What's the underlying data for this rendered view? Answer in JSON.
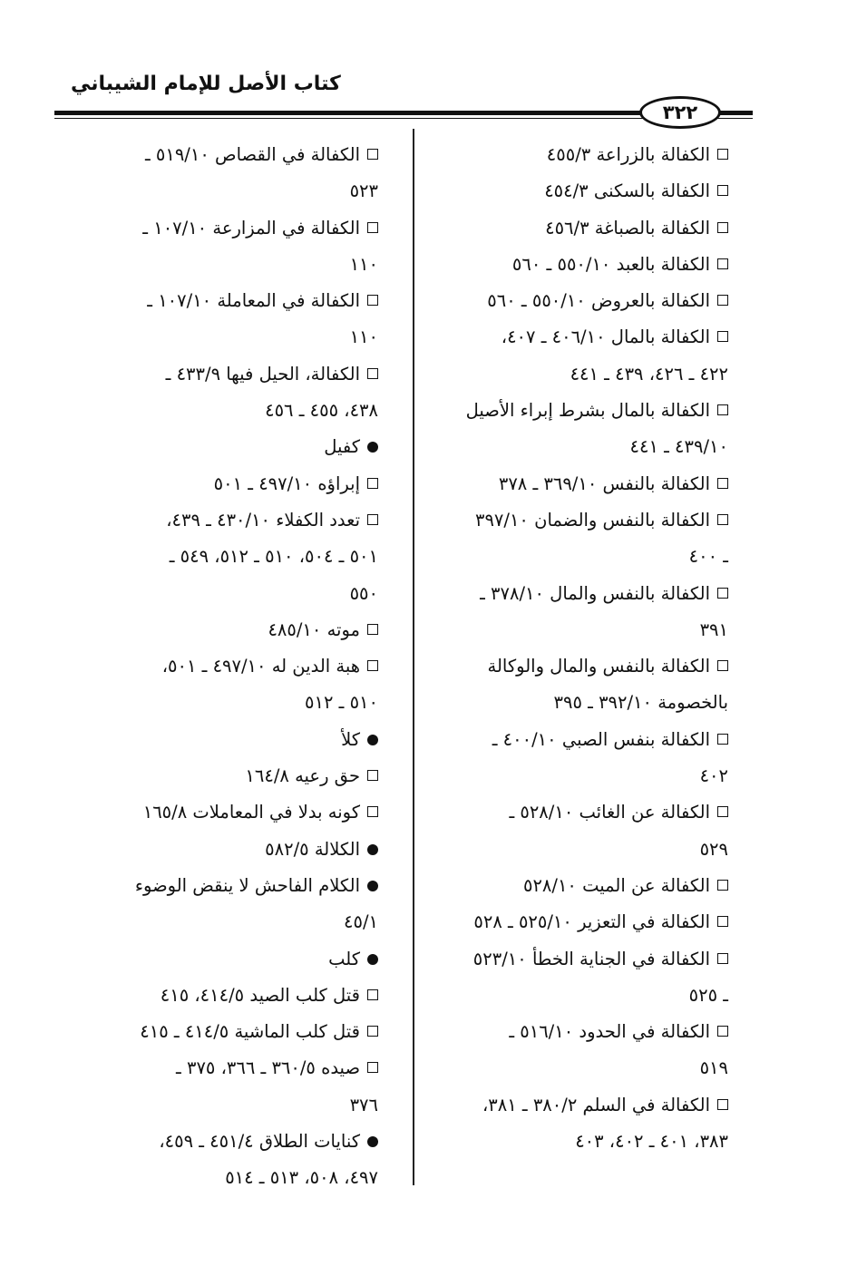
{
  "header": {
    "book_title": "كتاب الأصل للإمام الشيباني",
    "page_number": "٣٢٢"
  },
  "columns": {
    "right": [
      {
        "marker": "square",
        "lines": [
          "الكفالة بالزراعة ٤٥٥/٣"
        ]
      },
      {
        "marker": "square",
        "lines": [
          "الكفالة بالسكنى ٤٥٤/٣"
        ]
      },
      {
        "marker": "square",
        "lines": [
          "الكفالة بالصباغة ٤٥٦/٣"
        ]
      },
      {
        "marker": "square",
        "lines": [
          "الكفالة بالعبد ٥٥٠/١٠ ـ ٥٦٠"
        ]
      },
      {
        "marker": "square",
        "lines": [
          "الكفالة بالعروض ٥٥٠/١٠ ـ ٥٦٠"
        ]
      },
      {
        "marker": "square",
        "lines": [
          "الكفالة بالمال ٤٠٦/١٠ ـ ٤٠٧،",
          "٤٢٢ ـ ٤٢٦، ٤٣٩ ـ ٤٤١"
        ]
      },
      {
        "marker": "square",
        "lines": [
          "الكفالة بالمال بشرط إبراء الأصيل",
          "٤٣٩/١٠ ـ ٤٤١"
        ]
      },
      {
        "marker": "square",
        "lines": [
          "الكفالة بالنفس ٣٦٩/١٠ ـ ٣٧٨"
        ]
      },
      {
        "marker": "square",
        "lines": [
          "الكفالة بالنفس والضمان ٣٩٧/١٠",
          "ـ ٤٠٠"
        ]
      },
      {
        "marker": "square",
        "lines": [
          "الكفالة بالنفس والمال ٣٧٨/١٠ ـ",
          "٣٩١"
        ]
      },
      {
        "marker": "square",
        "lines": [
          "الكفالة بالنفس والمال والوكالة",
          "بالخصومة ٣٩٢/١٠ ـ ٣٩٥"
        ]
      },
      {
        "marker": "square",
        "lines": [
          "الكفالة بنفس الصبي ٤٠٠/١٠ ـ",
          "٤٠٢"
        ]
      },
      {
        "marker": "square",
        "lines": [
          "الكفالة عن الغائب ٥٢٨/١٠ ـ",
          "٥٢٩"
        ]
      },
      {
        "marker": "square",
        "lines": [
          "الكفالة عن الميت ٥٢٨/١٠"
        ]
      },
      {
        "marker": "square",
        "lines": [
          "الكفالة في التعزير ٥٢٥/١٠ ـ ٥٢٨"
        ]
      },
      {
        "marker": "square",
        "lines": [
          "الكفالة في الجناية الخطأ ٥٢٣/١٠",
          "ـ ٥٢٥"
        ]
      },
      {
        "marker": "square",
        "lines": [
          "الكفالة في الحدود ٥١٦/١٠ ـ",
          "٥١٩"
        ]
      },
      {
        "marker": "square",
        "lines": [
          "الكفالة في السلم ٣٨٠/٢ ـ ٣٨١،",
          "٣٨٣، ٤٠١ ـ ٤٠٢، ٤٠٣"
        ]
      }
    ],
    "left": [
      {
        "marker": "square",
        "lines": [
          "الكفالة في القصاص ٥١٩/١٠ ـ",
          "٥٢٣"
        ]
      },
      {
        "marker": "square",
        "lines": [
          "الكفالة في المزارعة ١٠٧/١٠ ـ",
          "١١٠"
        ]
      },
      {
        "marker": "square",
        "lines": [
          "الكفالة في المعاملة ١٠٧/١٠ ـ",
          "١١٠"
        ]
      },
      {
        "marker": "square",
        "lines": [
          "الكفالة، الحيل فيها ٤٣٣/٩ ـ",
          "٤٣٨، ٤٥٥ ـ ٤٥٦"
        ]
      },
      {
        "marker": "dot",
        "lines": [
          "كفيل"
        ]
      },
      {
        "marker": "square",
        "lines": [
          "إبراؤه ٤٩٧/١٠ ـ ٥٠١"
        ]
      },
      {
        "marker": "square",
        "lines": [
          "تعدد الكفلاء ٤٣٠/١٠ ـ ٤٣٩،",
          "٥٠١ ـ ٥٠٤، ٥١٠ ـ ٥١٢، ٥٤٩ ـ",
          "٥٥٠"
        ]
      },
      {
        "marker": "square",
        "lines": [
          "موته ٤٨٥/١٠"
        ]
      },
      {
        "marker": "square",
        "lines": [
          "هبة الدين له ٤٩٧/١٠ ـ ٥٠١،",
          "٥١٠ ـ ٥١٢"
        ]
      },
      {
        "marker": "dot",
        "lines": [
          "كلأ"
        ]
      },
      {
        "marker": "square",
        "lines": [
          "حق رعيه ١٦٤/٨"
        ]
      },
      {
        "marker": "square",
        "lines": [
          "كونه بدلا في المعاملات ١٦٥/٨"
        ]
      },
      {
        "marker": "dot",
        "lines": [
          "الكلالة ٥٨٢/٥"
        ]
      },
      {
        "marker": "dot",
        "lines": [
          "الكلام الفاحش لا ينقض الوضوء",
          "٤٥/١"
        ]
      },
      {
        "marker": "dot",
        "lines": [
          "كلب"
        ]
      },
      {
        "marker": "square",
        "lines": [
          "قتل كلب الصيد ٤١٤/٥، ٤١٥"
        ]
      },
      {
        "marker": "square",
        "lines": [
          "قتل كلب الماشية ٤١٤/٥ ـ ٤١٥"
        ]
      },
      {
        "marker": "square",
        "lines": [
          "صيده ٣٦٠/٥ ـ ٣٦٦، ٣٧٥ ـ",
          "٣٧٦"
        ]
      },
      {
        "marker": "dot",
        "lines": [
          "كنايات الطلاق ٤٥١/٤ ـ ٤٥٩،",
          "٤٩٧، ٥٠٨، ٥١٣ ـ ٥١٤"
        ]
      }
    ]
  }
}
